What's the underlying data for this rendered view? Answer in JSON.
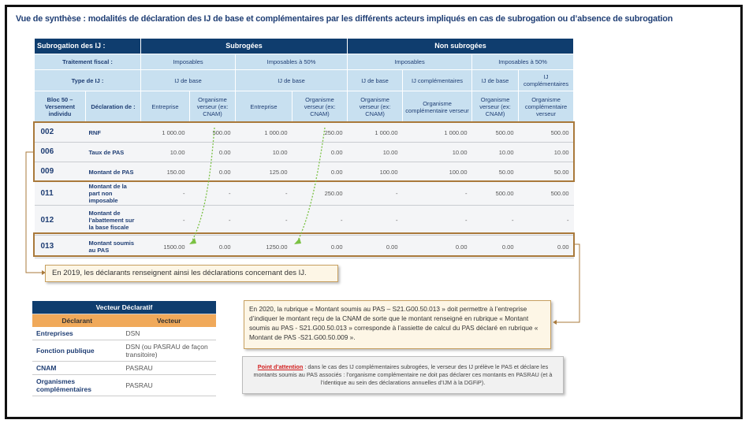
{
  "title": "Vue de synthèse : modalités de déclaration des IJ de base et complémentaires par les différents acteurs impliqués en cas de subrogation ou d’absence de subrogation",
  "table": {
    "subrogation_label": "Subrogation des IJ :",
    "subrogees": "Subrogées",
    "non_subrogees": "Non subrogées",
    "traitement_label": "Traitement fiscal :",
    "traitement": [
      "Imposables",
      "Imposables à 50%",
      "Imposables",
      "Imposables à 50%"
    ],
    "type_label": "Type de IJ :",
    "types": [
      "IJ de base",
      "IJ de base",
      "IJ de base",
      "IJ complémentaires",
      "IJ de base",
      "IJ complémentaires"
    ],
    "bloc_label": "Bloc 50 – Versement individu",
    "declaration_label": "Déclaration de :",
    "declarants": [
      "Entreprise",
      "Organisme verseur (ex: CNAM)",
      "Entreprise",
      "Organisme verseur (ex: CNAM)",
      "Organisme verseur (ex: CNAM)",
      "Organisme complémentaire verseur",
      "Organisme verseur (ex: CNAM)",
      "Organisme complémentaire verseur"
    ],
    "rows": [
      {
        "code": "002",
        "label": "RNF",
        "values": [
          "1 000.00",
          "500.00",
          "1 000.00",
          "250.00",
          "1 000.00",
          "1 000.00",
          "500.00",
          "500.00"
        ]
      },
      {
        "code": "006",
        "label": "Taux de PAS",
        "values": [
          "10.00",
          "0.00",
          "10.00",
          "0.00",
          "10.00",
          "10.00",
          "10.00",
          "10.00"
        ]
      },
      {
        "code": "009",
        "label": "Montant de PAS",
        "values": [
          "150.00",
          "0.00",
          "125.00",
          "0.00",
          "100.00",
          "100.00",
          "50.00",
          "50.00"
        ]
      },
      {
        "code": "011",
        "label": "Montant de la part non imposable",
        "values": [
          "-",
          "-",
          "-",
          "250.00",
          "-",
          "-",
          "500.00",
          "500.00"
        ]
      },
      {
        "code": "012",
        "label": "Montant de l’abattement sur la base fiscale",
        "values": [
          "-",
          "-",
          "-",
          "-",
          "-",
          "-",
          "-",
          "-"
        ]
      },
      {
        "code": "013",
        "label": "Montant soumis au PAS",
        "values": [
          "1500.00",
          "0.00",
          "1250.00",
          "0.00",
          "0.00",
          "0.00",
          "0.00",
          "0.00"
        ]
      }
    ]
  },
  "note_2019": "En 2019, les déclarants renseignent ainsi les déclarations concernant des IJ.",
  "vecteur": {
    "title": "Vecteur Déclaratif",
    "col1": "Déclarant",
    "col2": "Vecteur",
    "rows": [
      [
        "Entreprises",
        "DSN"
      ],
      [
        "Fonction publique",
        "DSN (ou PASRAU de façon transitoire)"
      ],
      [
        "CNAM",
        "PASRAU"
      ],
      [
        "Organismes complémentaires",
        "PASRAU"
      ]
    ]
  },
  "note_2020": "En 2020, la rubrique « Montant soumis au PAS – S21.G00.50.013 » doit permettre à l’entreprise d’indiquer le montant reçu de la CNAM de sorte que le montant renseigné en rubrique « Montant soumis au PAS - S21.G00.50.013 » corresponde à l’assiette de calcul du PAS déclaré en rubrique « Montant de PAS -S21.G00.50.009 ».",
  "attention": {
    "label": "Point d’attention",
    "text": " : dans le cas des IJ complémentaires subrogées, le verseur des IJ prélève le PAS et déclare les montants soumis au PAS associés : l’organisme complémentaire ne doit pas déclarer ces montants en PASRAU (et à l’identique au sein des déclarations annuelles d’IJM à la DGFiP)."
  },
  "colors": {
    "navy": "#0f3d6e",
    "light_blue": "#c8e0f0",
    "orange": "#f0a95a",
    "frame_brown": "#a9793b",
    "arrow_green": "#7ac143",
    "attention_red": "#d21e1e"
  }
}
